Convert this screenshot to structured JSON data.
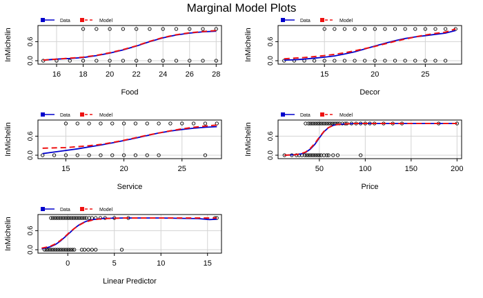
{
  "title": "Marginal Model Plots",
  "colors": {
    "data": "#0000cc",
    "model": "#ee1111",
    "points": "#000000",
    "grid": "#d3d3d3"
  },
  "chart_data": [
    {
      "type": "line",
      "xlabel": "Food",
      "ylabel": "InMichelin",
      "xlim": [
        14.6,
        28.4
      ],
      "ylim": [
        0,
        1
      ],
      "xticks": [
        "16",
        "18",
        "20",
        "22",
        "24",
        "26",
        "28"
      ],
      "yticks": [
        "0.0",
        "0.6"
      ],
      "grid": true,
      "legend": [
        "Data",
        "Model"
      ],
      "points": {
        "x": [
          15,
          16,
          17,
          18,
          19,
          20,
          21,
          22,
          23,
          24,
          25,
          26,
          27,
          28
        ],
        "y": [
          0,
          0,
          0,
          0,
          0,
          0,
          0,
          0,
          0,
          0,
          0,
          0,
          0,
          0
        ],
        "x_top": [
          18,
          19,
          20,
          21,
          22,
          23,
          24,
          25,
          26,
          27,
          28
        ],
        "y_top": [
          1,
          1,
          1,
          1,
          1,
          1,
          1,
          1,
          1,
          1,
          1
        ]
      },
      "series": [
        {
          "name": "Data",
          "x": [
            15,
            16,
            17,
            18,
            19,
            20,
            21,
            22,
            23,
            24,
            25,
            26,
            27,
            28
          ],
          "values": [
            0.02,
            0.05,
            0.07,
            0.1,
            0.16,
            0.24,
            0.34,
            0.46,
            0.6,
            0.72,
            0.81,
            0.87,
            0.91,
            0.93
          ]
        },
        {
          "name": "Model",
          "x": [
            15,
            16,
            17,
            18,
            19,
            20,
            21,
            22,
            23,
            24,
            25,
            26,
            27,
            28
          ],
          "values": [
            0.02,
            0.05,
            0.08,
            0.11,
            0.17,
            0.25,
            0.35,
            0.47,
            0.61,
            0.73,
            0.82,
            0.88,
            0.92,
            0.95
          ]
        }
      ]
    },
    {
      "type": "line",
      "xlabel": "Decor",
      "ylabel": "InMichelin",
      "xlim": [
        10.4,
        28.6
      ],
      "ylim": [
        0,
        1
      ],
      "xticks": [
        "15",
        "20",
        "25"
      ],
      "yticks": [
        "0.0",
        "0.6"
      ],
      "grid": true,
      "legend": [
        "Data",
        "Model"
      ],
      "points": {
        "x": [
          11,
          12,
          13,
          14,
          15,
          16,
          17,
          18,
          19,
          20,
          21,
          22,
          23,
          24,
          25,
          26,
          27
        ],
        "y": [
          0,
          0,
          0,
          0,
          0,
          0,
          0,
          0,
          0,
          0,
          0,
          0,
          0,
          0,
          0,
          0,
          0
        ],
        "x_top": [
          15,
          16,
          17,
          18,
          19,
          20,
          21,
          22,
          23,
          24,
          25,
          26,
          27,
          28
        ],
        "y_top": [
          1,
          1,
          1,
          1,
          1,
          1,
          1,
          1,
          1,
          1,
          1,
          1,
          1,
          1
        ]
      },
      "series": [
        {
          "name": "Data",
          "x": [
            11,
            12,
            13,
            14,
            15,
            16,
            17,
            18,
            19,
            20,
            21,
            22,
            23,
            24,
            25,
            26,
            27,
            28
          ],
          "values": [
            0.02,
            0.03,
            0.05,
            0.08,
            0.11,
            0.15,
            0.21,
            0.28,
            0.37,
            0.46,
            0.55,
            0.63,
            0.7,
            0.75,
            0.79,
            0.83,
            0.87,
            0.95
          ]
        },
        {
          "name": "Model",
          "x": [
            11,
            12,
            13,
            14,
            15,
            16,
            17,
            18,
            19,
            20,
            21,
            22,
            23,
            24,
            25,
            26,
            27,
            28
          ],
          "values": [
            0.06,
            0.08,
            0.1,
            0.13,
            0.16,
            0.2,
            0.25,
            0.31,
            0.38,
            0.45,
            0.53,
            0.61,
            0.68,
            0.75,
            0.81,
            0.86,
            0.9,
            1.0
          ]
        }
      ]
    },
    {
      "type": "line",
      "xlabel": "Service",
      "ylabel": "InMichelin",
      "xlim": [
        12.6,
        28.4
      ],
      "ylim": [
        0,
        1
      ],
      "xticks": [
        "15",
        "20",
        "25"
      ],
      "yticks": [
        "0.0",
        "0.6"
      ],
      "grid": true,
      "legend": [
        "Data",
        "Model"
      ],
      "points": {
        "x": [
          13,
          14,
          15,
          16,
          17,
          18,
          19,
          20,
          21,
          22,
          23,
          27
        ],
        "y": [
          0,
          0,
          0,
          0,
          0,
          0,
          0,
          0,
          0,
          0,
          0,
          0
        ],
        "x_top": [
          15,
          16,
          17,
          18,
          19,
          20,
          21,
          22,
          23,
          24,
          25,
          26,
          27,
          28
        ],
        "y_top": [
          1,
          1,
          1,
          1,
          1,
          1,
          1,
          1,
          1,
          1,
          1,
          1,
          1,
          1
        ]
      },
      "series": [
        {
          "name": "Data",
          "x": [
            13,
            14,
            15,
            16,
            17,
            18,
            19,
            20,
            21,
            22,
            23,
            24,
            25,
            26,
            27,
            28
          ],
          "values": [
            0.05,
            0.1,
            0.15,
            0.2,
            0.26,
            0.32,
            0.39,
            0.46,
            0.54,
            0.62,
            0.7,
            0.76,
            0.81,
            0.85,
            0.88,
            0.9
          ]
        },
        {
          "name": "Model",
          "x": [
            13,
            14,
            15,
            16,
            17,
            18,
            19,
            20,
            21,
            22,
            23,
            24,
            25,
            26,
            27,
            28
          ],
          "values": [
            0.22,
            0.23,
            0.24,
            0.27,
            0.3,
            0.34,
            0.4,
            0.47,
            0.55,
            0.63,
            0.7,
            0.77,
            0.83,
            0.88,
            0.92,
            0.95
          ]
        }
      ]
    },
    {
      "type": "line",
      "xlabel": "Price",
      "ylabel": "InMichelin",
      "xlim": [
        5,
        205
      ],
      "ylim": [
        0,
        1
      ],
      "xticks": [
        "50",
        "100",
        "150",
        "200"
      ],
      "yticks": [
        "0.0",
        "0.6"
      ],
      "grid": true,
      "legend": [
        "Data",
        "Model"
      ],
      "points": {
        "x": [
          12,
          20,
          25,
          28,
          31,
          34,
          36,
          38,
          40,
          42,
          44,
          46,
          48,
          50,
          52,
          55,
          58,
          60,
          65,
          70,
          95
        ],
        "y": [
          0,
          0,
          0,
          0,
          0,
          0,
          0,
          0,
          0,
          0,
          0,
          0,
          0,
          0,
          0,
          0,
          0,
          0,
          0,
          0,
          0
        ],
        "x_top": [
          35,
          38,
          40,
          42,
          44,
          46,
          48,
          50,
          52,
          54,
          56,
          58,
          60,
          62,
          64,
          66,
          68,
          70,
          72,
          75,
          78,
          80,
          85,
          90,
          95,
          100,
          105,
          110,
          120,
          130,
          140,
          180,
          200
        ],
        "y_top": [
          1,
          1,
          1,
          1,
          1,
          1,
          1,
          1,
          1,
          1,
          1,
          1,
          1,
          1,
          1,
          1,
          1,
          1,
          1,
          1,
          1,
          1,
          1,
          1,
          1,
          1,
          1,
          1,
          1,
          1,
          1,
          1,
          1
        ]
      },
      "series": [
        {
          "name": "Data",
          "x": [
            12,
            20,
            25,
            30,
            35,
            40,
            45,
            50,
            55,
            60,
            65,
            70,
            80,
            90,
            100,
            150,
            200
          ],
          "values": [
            0.0,
            0.01,
            0.02,
            0.04,
            0.09,
            0.19,
            0.34,
            0.55,
            0.74,
            0.87,
            0.94,
            0.97,
            0.99,
            1.0,
            1.0,
            1.0,
            1.0
          ]
        },
        {
          "name": "Model",
          "x": [
            12,
            20,
            25,
            30,
            35,
            40,
            45,
            50,
            55,
            60,
            65,
            70,
            80,
            90,
            100,
            150,
            200
          ],
          "values": [
            0.0,
            0.01,
            0.02,
            0.05,
            0.1,
            0.21,
            0.37,
            0.57,
            0.75,
            0.87,
            0.94,
            0.97,
            0.99,
            1.0,
            1.0,
            1.0,
            1.0
          ]
        }
      ]
    },
    {
      "type": "line",
      "xlabel": "Linear Predictor",
      "ylabel": "InMichelin",
      "xlim": [
        -3.2,
        16.5
      ],
      "ylim": [
        0,
        1
      ],
      "xticks": [
        "0",
        "5",
        "10",
        "15"
      ],
      "yticks": [
        "0.0",
        "0.6"
      ],
      "grid": true,
      "legend": [
        "Data",
        "Model"
      ],
      "points": {
        "x": [
          -2.5,
          -2.3,
          -2.1,
          -1.9,
          -1.7,
          -1.5,
          -1.3,
          -1.1,
          -0.9,
          -0.7,
          -0.5,
          -0.3,
          -0.1,
          0.1,
          0.3,
          0.5,
          0.7,
          1.5,
          1.8,
          2.2,
          2.6,
          3.0,
          5.8
        ],
        "y": [
          0,
          0,
          0,
          0,
          0,
          0,
          0,
          0,
          0,
          0,
          0,
          0,
          0,
          0,
          0,
          0,
          0,
          0,
          0,
          0,
          0,
          0,
          0
        ],
        "x_top": [
          -1.8,
          -1.6,
          -1.4,
          -1.2,
          -1.0,
          -0.8,
          -0.6,
          -0.4,
          -0.2,
          0.0,
          0.2,
          0.4,
          0.6,
          0.8,
          1.0,
          1.2,
          1.4,
          1.6,
          1.8,
          2.0,
          2.3,
          2.6,
          3.0,
          3.5,
          4.0,
          5.0,
          6.5,
          15.8,
          16.0
        ],
        "y_top": [
          1,
          1,
          1,
          1,
          1,
          1,
          1,
          1,
          1,
          1,
          1,
          1,
          1,
          1,
          1,
          1,
          1,
          1,
          1,
          1,
          1,
          1,
          1,
          1,
          1,
          1,
          1,
          1,
          1
        ]
      },
      "series": [
        {
          "name": "Data",
          "x": [
            -2.8,
            -2.3,
            -1.8,
            -1.3,
            -0.8,
            -0.3,
            0.2,
            0.7,
            1.2,
            1.7,
            2.2,
            2.7,
            3.2,
            4.0,
            6.0,
            8.0,
            10.0,
            12.0,
            14.0,
            15.2,
            16.0
          ],
          "values": [
            0.03,
            0.06,
            0.1,
            0.17,
            0.27,
            0.4,
            0.53,
            0.67,
            0.78,
            0.86,
            0.92,
            0.95,
            0.97,
            0.99,
            1.0,
            1.0,
            1.0,
            0.99,
            0.98,
            0.95,
            0.96
          ]
        },
        {
          "name": "Model",
          "x": [
            -2.8,
            -2.3,
            -1.8,
            -1.3,
            -0.8,
            -0.3,
            0.2,
            0.7,
            1.2,
            1.7,
            2.2,
            2.7,
            3.2,
            4.0,
            6.0,
            8.0,
            10.0,
            12.0,
            14.0,
            15.2,
            16.0
          ],
          "values": [
            0.05,
            0.08,
            0.12,
            0.19,
            0.29,
            0.41,
            0.55,
            0.67,
            0.77,
            0.85,
            0.9,
            0.94,
            0.96,
            0.98,
            1.0,
            1.0,
            1.0,
            1.0,
            1.0,
            1.0,
            1.0
          ]
        }
      ]
    }
  ]
}
